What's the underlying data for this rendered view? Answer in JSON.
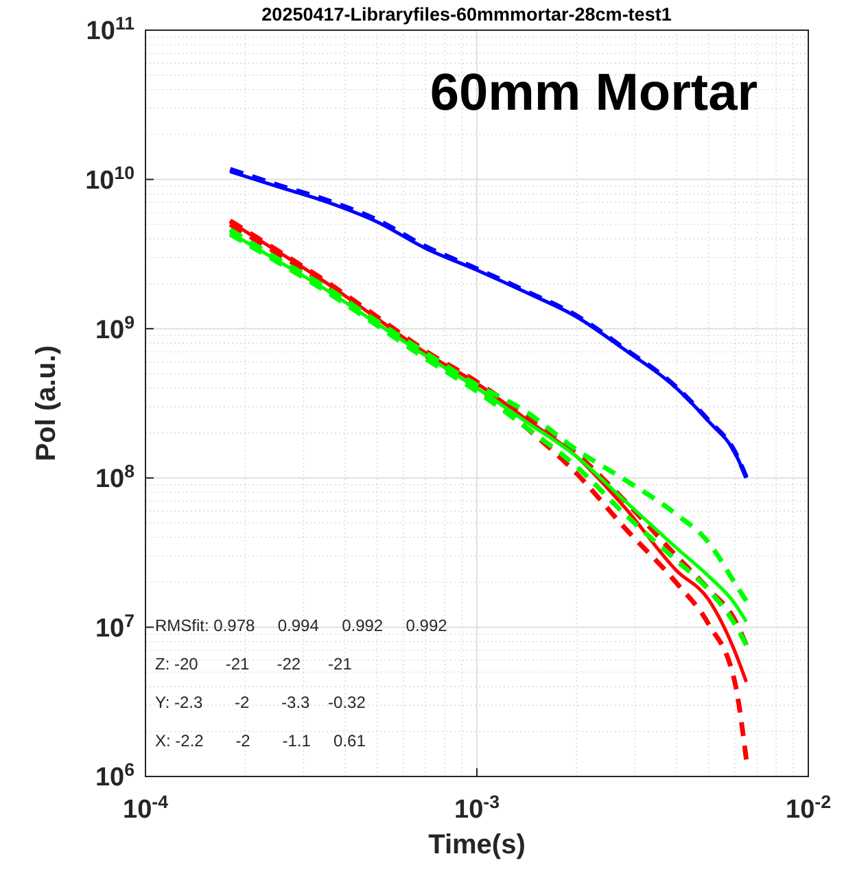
{
  "chart_data": {
    "type": "line",
    "title": "20250417-Libraryfiles-60mmmortar-28cm-test1",
    "xlabel": "Time(s)",
    "ylabel": "Pol (a.u.)",
    "log": "xy",
    "grid": true,
    "xlim": [
      0.0001,
      0.01
    ],
    "ylim": [
      1000000,
      100000000000
    ],
    "xticks": [
      {
        "value": 0.0001,
        "label": "10$^{-4}$"
      },
      {
        "value": 0.001,
        "label": "10$^{-3}$"
      },
      {
        "value": 0.01,
        "label": "10$^{-2}$"
      }
    ],
    "yticks": [
      {
        "value": 1000000,
        "label": "10$^{6}$"
      },
      {
        "value": 10000000,
        "label": "10$^{7}$"
      },
      {
        "value": 100000000,
        "label": "10$^{8}$"
      },
      {
        "value": 1000000000,
        "label": "10$^{9}$"
      },
      {
        "value": 10000000000,
        "label": "10$^{10}$"
      },
      {
        "value": 100000000000,
        "label": "10$^{11}$"
      }
    ],
    "x": [
      0.00018,
      0.00025,
      0.00035,
      0.0005,
      0.0007,
      0.001,
      0.0014,
      0.002,
      0.0028,
      0.004,
      0.005,
      0.006,
      0.0065
    ],
    "series": [
      {
        "color": "#0000ff",
        "line_style": "solid",
        "values": [
          11300000000,
          8960000000,
          7100000000,
          5200000000,
          3460000000,
          2470000000,
          1760000000,
          1200000000,
          720000000,
          400000000,
          240000000,
          148000000,
          100000000
        ]
      },
      {
        "color": "#0000ff",
        "line_style": "dashed",
        "values": [
          11700000000,
          9200000000,
          7300000000,
          5350000000,
          3550000000,
          2520000000,
          1790000000,
          1220000000,
          730000000,
          405000000,
          243000000,
          150000000,
          101000000
        ]
      },
      {
        "color": "#ff0000",
        "line_style": "solid",
        "values": [
          5200000000,
          3300000000,
          2040000000,
          1170000000,
          690000000,
          430000000,
          250000000,
          139000000,
          63000000,
          24000000,
          15300000,
          6900000,
          4300000
        ]
      },
      {
        "color": "#ff0000",
        "line_style": "dashed",
        "values": [
          5300000000,
          3350000000,
          2080000000,
          1200000000,
          710000000,
          440000000,
          260000000,
          145000000,
          70000000,
          30000000,
          18000000,
          11200000,
          7600000
        ]
      },
      {
        "color": "#ff0000",
        "line_style": "dashed",
        "values": [
          5000000000,
          3200000000,
          1980000000,
          1130000000,
          660000000,
          400000000,
          220000000,
          107000000,
          46000000,
          19800000,
          10500000,
          4300000,
          1300000
        ]
      },
      {
        "color": "#00ff00",
        "line_style": "solid",
        "values": [
          4400000000,
          2860000000,
          1830000000,
          1080000000,
          660000000,
          400000000,
          240000000,
          139000000,
          70000000,
          34000000,
          22000000,
          14400000,
          10900000
        ]
      },
      {
        "color": "#00ff00",
        "line_style": "dashed",
        "values": [
          4600000000,
          2950000000,
          1900000000,
          1120000000,
          690000000,
          420000000,
          280000000,
          154000000,
          97000000,
          57000000,
          37000000,
          19800000,
          15000000
        ]
      },
      {
        "color": "#00ff00",
        "line_style": "dashed",
        "values": [
          4300000000,
          2800000000,
          1780000000,
          1050000000,
          630000000,
          380000000,
          220000000,
          119000000,
          57000000,
          28000000,
          17800000,
          10500000,
          7600000
        ]
      }
    ],
    "annotations": [
      "60mm Mortar",
      "RMSfit: 0.978     0.994     0.992     0.992",
      "Z: -20      -21      -22      -21",
      "Y: -2.3       -2       -3.3    -0.32",
      "X: -2.2       -2       -1.1     0.61"
    ]
  }
}
